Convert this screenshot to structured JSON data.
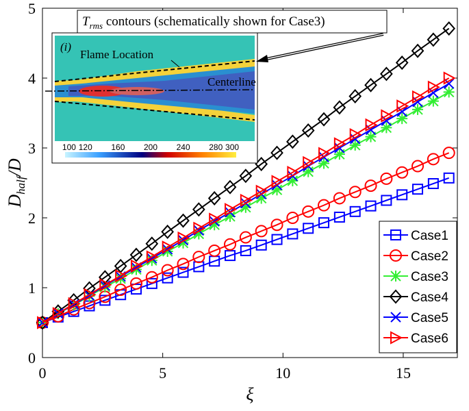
{
  "chart_data": {
    "type": "line",
    "xlabel": "ξ",
    "ylabel": {
      "main": "D",
      "sub": "half",
      "tail": "/D"
    },
    "x": [
      0,
      0.65,
      1.3,
      1.95,
      2.6,
      3.25,
      3.9,
      4.55,
      5.2,
      5.85,
      6.5,
      7.15,
      7.8,
      8.45,
      9.1,
      9.75,
      10.4,
      11.05,
      11.7,
      12.35,
      13,
      13.65,
      14.3,
      14.95,
      15.6,
      16.25,
      16.9
    ],
    "xlim": [
      0,
      17.25
    ],
    "xticks": [
      0,
      5,
      10,
      15
    ],
    "ylim": [
      0,
      5
    ],
    "yticks": [
      0,
      1,
      2,
      3,
      4,
      5
    ],
    "grid": false,
    "legend": "lower right",
    "series": [
      {
        "name": "Case1",
        "color": "#0000ff",
        "marker": "square",
        "values": [
          0.5,
          0.58,
          0.66,
          0.74,
          0.82,
          0.9,
          0.98,
          1.06,
          1.14,
          1.22,
          1.3,
          1.38,
          1.46,
          1.53,
          1.61,
          1.69,
          1.77,
          1.85,
          1.93,
          2.01,
          2.09,
          2.17,
          2.25,
          2.33,
          2.41,
          2.49,
          2.57
        ]
      },
      {
        "name": "Case2",
        "color": "#ff0000",
        "marker": "circle",
        "values": [
          0.5,
          0.59,
          0.69,
          0.78,
          0.87,
          0.97,
          1.06,
          1.15,
          1.25,
          1.34,
          1.44,
          1.53,
          1.62,
          1.72,
          1.81,
          1.9,
          2.0,
          2.09,
          2.18,
          2.28,
          2.37,
          2.46,
          2.56,
          2.65,
          2.74,
          2.84,
          2.93
        ]
      },
      {
        "name": "Case3",
        "color": "#33ee33",
        "marker": "asterisk",
        "values": [
          0.5,
          0.63,
          0.75,
          0.88,
          1.01,
          1.13,
          1.26,
          1.39,
          1.52,
          1.64,
          1.77,
          1.9,
          2.02,
          2.15,
          2.28,
          2.4,
          2.53,
          2.66,
          2.78,
          2.91,
          3.04,
          3.16,
          3.29,
          3.42,
          3.55,
          3.67,
          3.8
        ]
      },
      {
        "name": "Case4",
        "color": "#000000",
        "marker": "diamond",
        "values": [
          0.5,
          0.66,
          0.82,
          0.99,
          1.15,
          1.31,
          1.47,
          1.63,
          1.8,
          1.96,
          2.12,
          2.28,
          2.44,
          2.6,
          2.77,
          2.93,
          3.09,
          3.25,
          3.41,
          3.58,
          3.74,
          3.9,
          4.06,
          4.22,
          4.39,
          4.55,
          4.71
        ]
      },
      {
        "name": "Case5",
        "color": "#0000ff",
        "marker": "x",
        "values": [
          0.5,
          0.63,
          0.76,
          0.89,
          1.03,
          1.16,
          1.29,
          1.42,
          1.55,
          1.68,
          1.82,
          1.95,
          2.08,
          2.21,
          2.34,
          2.47,
          2.6,
          2.74,
          2.87,
          3.0,
          3.13,
          3.26,
          3.39,
          3.52,
          3.66,
          3.79,
          3.92
        ]
      },
      {
        "name": "Case6",
        "color": "#ff0000",
        "marker": "triangle-right",
        "values": [
          0.5,
          0.63,
          0.77,
          0.9,
          1.04,
          1.17,
          1.31,
          1.44,
          1.58,
          1.71,
          1.85,
          1.98,
          2.12,
          2.25,
          2.38,
          2.52,
          2.65,
          2.79,
          2.92,
          3.06,
          3.19,
          3.33,
          3.46,
          3.6,
          3.73,
          3.87,
          4.0
        ]
      }
    ],
    "inset": {
      "title": {
        "main": "T",
        "sub": "rms",
        "tail": " contours (schematically shown for Case3)"
      },
      "panel": "(i)",
      "annotations": [
        "Flame Location",
        "Centerline"
      ],
      "colorbar": {
        "range": [
          95,
          305
        ],
        "ticks": [
          100,
          120,
          160,
          200,
          240,
          280,
          300
        ]
      }
    }
  }
}
